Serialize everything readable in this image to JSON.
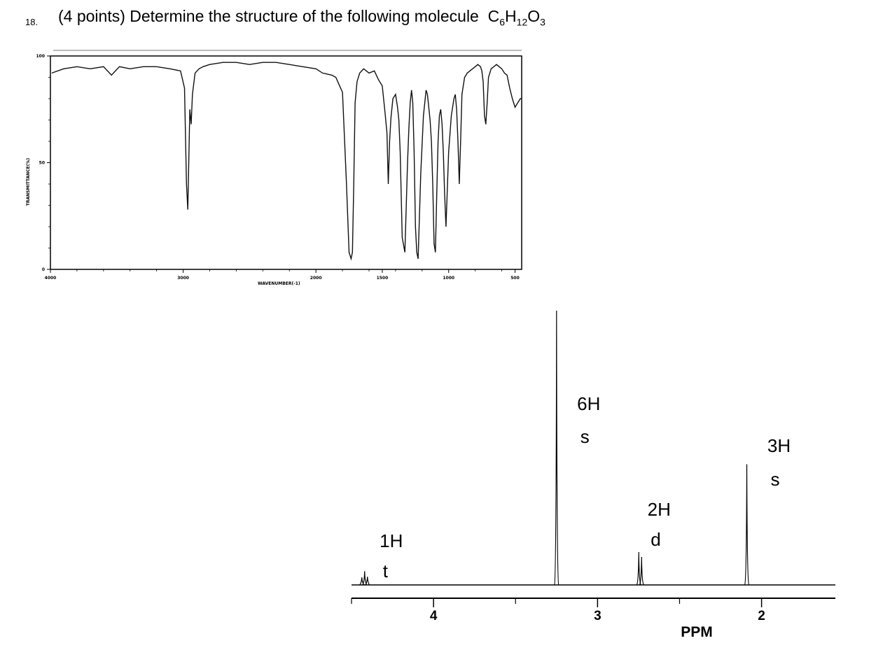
{
  "question": {
    "number": "18.",
    "text": "(4 points) Determine the structure of the following molecule",
    "formula": {
      "c": "C",
      "c_sub": "6",
      "h": "H",
      "h_sub": "12",
      "o": "O",
      "o_sub": "3"
    }
  },
  "chart_data": [
    {
      "type": "line",
      "title": "",
      "xlabel": "WAVENUMBER(-1)",
      "ylabel": "TRANSMITTANCE(%)",
      "xlim": [
        4000,
        450
      ],
      "ylim": [
        0,
        100
      ],
      "x_reversed": true,
      "x_ticks": [
        {
          "value": 4000,
          "label": "4000"
        },
        {
          "value": 3000,
          "label": "3000"
        },
        {
          "value": 2000,
          "label": "2000"
        },
        {
          "value": 1500,
          "label": "1500"
        },
        {
          "value": 1000,
          "label": "1000"
        },
        {
          "value": 500,
          "label": "500"
        }
      ],
      "y_ticks": [
        {
          "value": 100,
          "label": "100"
        },
        {
          "value": 50,
          "label": "50"
        },
        {
          "value": 0,
          "label": "0"
        }
      ],
      "series": [
        {
          "x": [
            3990,
            3900,
            3800,
            3700,
            3600,
            3540,
            3480,
            3400,
            3300,
            3200,
            3100,
            3020,
            2990,
            2975,
            2965,
            2950,
            2940,
            2930,
            2910,
            2880,
            2850,
            2800,
            2700,
            2600,
            2500,
            2400,
            2300,
            2200,
            2100,
            2000,
            1950,
            1880,
            1850,
            1800,
            1770,
            1750,
            1735,
            1725,
            1715,
            1705,
            1690,
            1670,
            1640,
            1600,
            1560,
            1530,
            1500,
            1480,
            1465,
            1455,
            1445,
            1435,
            1420,
            1400,
            1385,
            1375,
            1365,
            1350,
            1330,
            1310,
            1300,
            1290,
            1280,
            1270,
            1260,
            1250,
            1240,
            1230,
            1210,
            1190,
            1170,
            1160,
            1150,
            1140,
            1130,
            1120,
            1110,
            1100,
            1090,
            1080,
            1070,
            1060,
            1050,
            1040,
            1030,
            1020,
            1000,
            980,
            960,
            950,
            940,
            930,
            920,
            910,
            900,
            880,
            860,
            840,
            820,
            800,
            780,
            760,
            750,
            740,
            730,
            720,
            710,
            700,
            680,
            660,
            640,
            620,
            600,
            580,
            560,
            540,
            520,
            500,
            480,
            460,
            450
          ],
          "y": [
            92,
            94,
            95,
            94,
            95,
            91,
            95,
            94,
            95,
            95,
            94,
            93,
            85,
            40,
            28,
            75,
            68,
            82,
            92,
            94,
            95,
            96,
            97,
            97,
            96,
            97,
            97,
            96,
            95,
            94,
            92,
            91,
            90,
            83,
            40,
            8,
            5,
            8,
            40,
            78,
            88,
            92,
            94,
            92,
            93,
            89,
            86,
            74,
            64,
            40,
            60,
            71,
            80,
            82,
            76,
            70,
            55,
            15,
            8,
            50,
            66,
            78,
            84,
            78,
            55,
            20,
            8,
            5,
            45,
            72,
            84,
            82,
            76,
            70,
            60,
            40,
            12,
            8,
            35,
            60,
            72,
            75,
            68,
            55,
            35,
            20,
            55,
            72,
            80,
            82,
            75,
            60,
            40,
            60,
            82,
            90,
            92,
            93,
            94,
            95,
            96,
            95,
            93,
            88,
            72,
            68,
            78,
            90,
            94,
            95,
            96,
            95,
            94,
            92,
            91,
            85,
            80,
            76,
            78,
            80,
            80
          ]
        }
      ]
    },
    {
      "type": "line",
      "title": "",
      "xlabel": "PPM",
      "ylabel": "",
      "xlim": [
        4.5,
        1.55
      ],
      "ylim": [
        0,
        100
      ],
      "x_reversed": true,
      "x_ticks": [
        {
          "value": 4,
          "label": "4"
        },
        {
          "value": 3,
          "label": "3"
        },
        {
          "value": 2,
          "label": "2"
        }
      ],
      "peaks": [
        {
          "ppm": 4.42,
          "height": 5,
          "multiplicity": "t",
          "integration": "1H",
          "label_integration": "1H",
          "label_multiplicity": "t"
        },
        {
          "ppm": 3.25,
          "height": 100,
          "multiplicity": "s",
          "integration": "6H",
          "label_integration": "6H",
          "label_multiplicity": "s"
        },
        {
          "ppm": 2.74,
          "height": 12,
          "multiplicity": "d",
          "integration": "2H",
          "label_integration": "2H",
          "label_multiplicity": "d"
        },
        {
          "ppm": 2.09,
          "height": 44,
          "multiplicity": "s",
          "integration": "3H",
          "label_integration": "3H",
          "label_multiplicity": "s"
        }
      ]
    }
  ]
}
